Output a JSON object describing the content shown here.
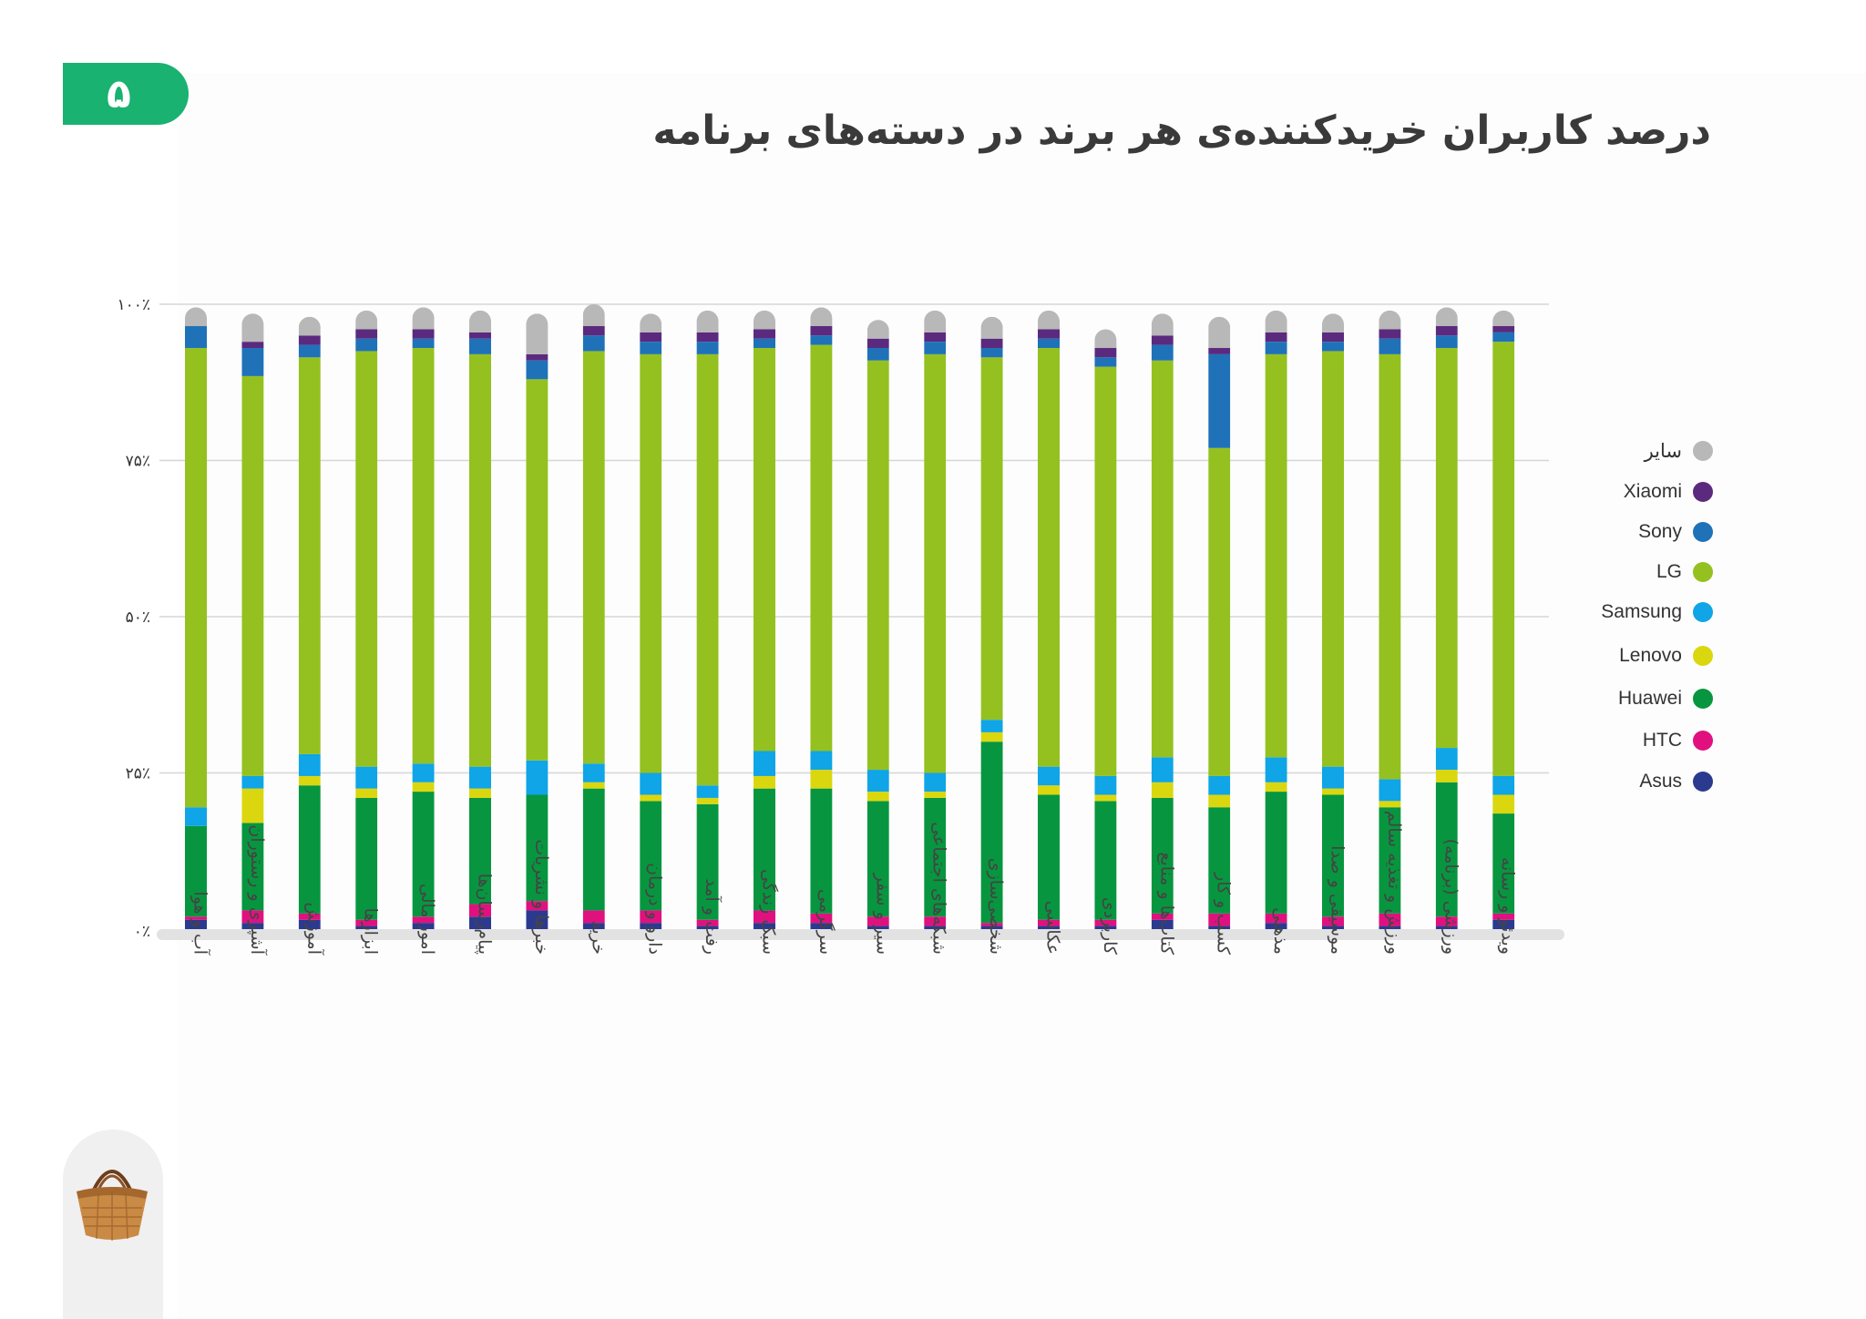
{
  "page": {
    "number": "۵",
    "title": "درصد کاربران خریدکننده‌ی هر برند در دسته‌های برنامه"
  },
  "colors": {
    "accent": "#19b271",
    "Asus": "#2b3a8f",
    "HTC": "#e0117f",
    "Huawei": "#07963f",
    "Lenovo": "#dbd70e",
    "Samsung": "#0fa5e6",
    "LG": "#94c11f",
    "Sony": "#1f72b8",
    "Xiaomi": "#5b2a7f",
    "other": "#b8b8b8"
  },
  "legend": [
    {
      "key": "other",
      "label": "سایر"
    },
    {
      "key": "Xiaomi",
      "label": "Xiaomi"
    },
    {
      "key": "Sony",
      "label": "Sony"
    },
    {
      "key": "LG",
      "label": "LG"
    },
    {
      "key": "Samsung",
      "label": "Samsung"
    },
    {
      "key": "Lenovo",
      "label": "Lenovo"
    },
    {
      "key": "Huawei",
      "label": "Huawei"
    },
    {
      "key": "HTC",
      "label": "HTC"
    },
    {
      "key": "Asus",
      "label": "Asus"
    }
  ],
  "chart_data": {
    "type": "bar",
    "stacked": true,
    "title": "درصد کاربران خریدکننده‌ی هر برند در دسته‌های برنامه",
    "ylim": [
      0,
      100
    ],
    "y_ticks": [
      "۰٪",
      "۲۵٪",
      "۵۰٪",
      "۷۵٪",
      "۱۰۰٪"
    ],
    "y_tick_values": [
      0,
      25,
      50,
      75,
      100
    ],
    "grid": true,
    "legend_position": "right",
    "categories": [
      "آب و هوا",
      "آشپزی و رستوران",
      "آموزش",
      "ابزارها",
      "امور مالی",
      "پیام‌رسان‌ها",
      "خبرها و نشریات",
      "خرید",
      "دارو و درمان",
      "رفت و آمد",
      "سبک زندگی",
      "سرگرمی",
      "سیر و سفر",
      "شبکه‌های اجتماعی",
      "شخصی‌سازی",
      "عکاسی",
      "کاربردی",
      "کتاب‌ها و منابع",
      "کسب و کار",
      "مذهبی",
      "موسیقی و صدا",
      "ورزش و تغذیه سالم",
      "ورزشی (برنامه)",
      "ویدئو و رسانه"
    ],
    "series": [
      {
        "name": "Asus",
        "values": [
          1.5,
          1,
          1.5,
          0.5,
          1,
          2,
          3,
          1,
          1,
          0.5,
          1,
          1,
          0.5,
          0.5,
          0.5,
          0.5,
          0.5,
          1.5,
          0.5,
          1,
          0.5,
          0.5,
          0.5,
          1.5
        ]
      },
      {
        "name": "HTC",
        "values": [
          0.5,
          2,
          1,
          1,
          1,
          2,
          1.5,
          2,
          2,
          1,
          2,
          1.5,
          1.5,
          1.5,
          0.5,
          1,
          1,
          1,
          2,
          1.5,
          1.5,
          2,
          1.5,
          1
        ]
      },
      {
        "name": "Huawei",
        "values": [
          14.5,
          14,
          20.5,
          19.5,
          20,
          17,
          17,
          19.5,
          17.5,
          18.5,
          19.5,
          20,
          18.5,
          19,
          29,
          20,
          19,
          18.5,
          17,
          19.5,
          19.5,
          17,
          21.5,
          16
        ]
      },
      {
        "name": "Lenovo",
        "values": [
          0,
          5.5,
          1.5,
          1.5,
          1.5,
          1.5,
          0,
          1,
          1,
          1,
          2,
          3,
          1.5,
          1,
          1.5,
          1.5,
          1,
          2.5,
          2,
          1.5,
          1,
          1,
          2,
          3
        ]
      },
      {
        "name": "Samsung",
        "values": [
          3,
          2,
          3.5,
          3.5,
          3,
          3.5,
          5.5,
          3,
          3.5,
          2,
          4,
          3,
          3.5,
          3,
          2,
          3,
          3,
          4,
          3,
          4,
          3.5,
          3.5,
          3.5,
          3
        ]
      },
      {
        "name": "LG",
        "values": [
          73.5,
          64,
          63.5,
          66.5,
          66.5,
          66,
          61,
          66,
          67,
          69,
          64.5,
          65,
          65.5,
          67,
          58,
          67,
          65.5,
          63.5,
          52.5,
          64.5,
          66.5,
          68,
          64,
          69.5
        ]
      },
      {
        "name": "Sony",
        "values": [
          3.5,
          4.5,
          2,
          2,
          1.5,
          2.5,
          3,
          2.5,
          2,
          2,
          1.5,
          1.5,
          2,
          2,
          1.5,
          1.5,
          1.5,
          2.5,
          15,
          2,
          1.5,
          2.5,
          2,
          1.5
        ]
      },
      {
        "name": "Xiaomi",
        "values": [
          0,
          1,
          1.5,
          1.5,
          1.5,
          1,
          1,
          1.5,
          1.5,
          1.5,
          1.5,
          1.5,
          1.5,
          1.5,
          1.5,
          1.5,
          1.5,
          1.5,
          1,
          1.5,
          1.5,
          1.5,
          1.5,
          1
        ]
      },
      {
        "name": "سایر",
        "values": [
          3,
          4.5,
          3,
          3,
          3.5,
          3.5,
          6.5,
          3.5,
          3,
          3.5,
          3,
          3,
          3,
          3.5,
          3.5,
          3,
          3,
          3.5,
          5,
          3.5,
          3,
          3,
          3,
          2.5
        ]
      }
    ]
  }
}
